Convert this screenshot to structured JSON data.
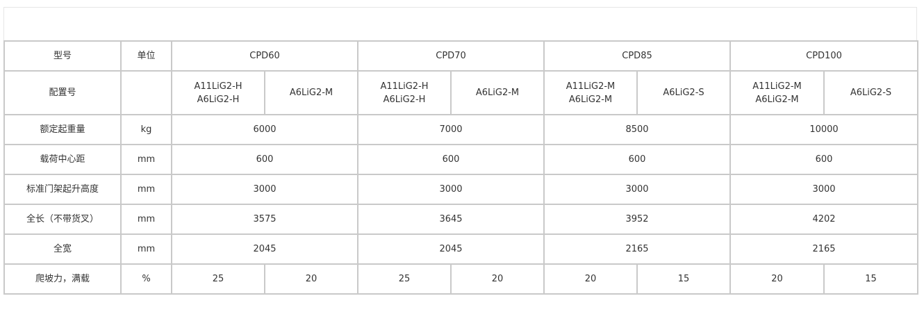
{
  "table": {
    "title": "",
    "header": {
      "label": "型号",
      "unit": "单位",
      "models": [
        "CPD60",
        "CPD70",
        "CPD85",
        "CPD100"
      ]
    },
    "config": {
      "label": "配置号",
      "unit": "",
      "values": [
        [
          "A11LiG2-H",
          "A6LiG2-H"
        ],
        [
          "A6LiG2-M"
        ],
        [
          "A11LiG2-H",
          "A6LiG2-H"
        ],
        [
          "A6LiG2-M"
        ],
        [
          "A11LiG2-M",
          "A6LiG2-M"
        ],
        [
          "A6LiG2-S"
        ],
        [
          "A11LiG2-M",
          "A6LiG2-M"
        ],
        [
          "A6LiG2-S"
        ]
      ]
    },
    "rows": [
      {
        "label": "额定起重量",
        "unit": "kg",
        "values": [
          "6000",
          "7000",
          "8500",
          "10000"
        ]
      },
      {
        "label": "载荷中心距",
        "unit": "mm",
        "values": [
          "600",
          "600",
          "600",
          "600"
        ]
      },
      {
        "label": "标准门架起升高度",
        "unit": "mm",
        "values": [
          "3000",
          "3000",
          "3000",
          "3000"
        ]
      },
      {
        "label": "全长（不带货叉）",
        "unit": "mm",
        "values": [
          "3575",
          "3645",
          "3952",
          "4202"
        ]
      },
      {
        "label": "全宽",
        "unit": "mm",
        "values": [
          "2045",
          "2045",
          "2165",
          "2165"
        ]
      },
      {
        "label": "爬坡力，满载",
        "unit": "%",
        "values": [
          "25",
          "20",
          "25",
          "20",
          "20",
          "15",
          "20",
          "15"
        ]
      }
    ]
  }
}
